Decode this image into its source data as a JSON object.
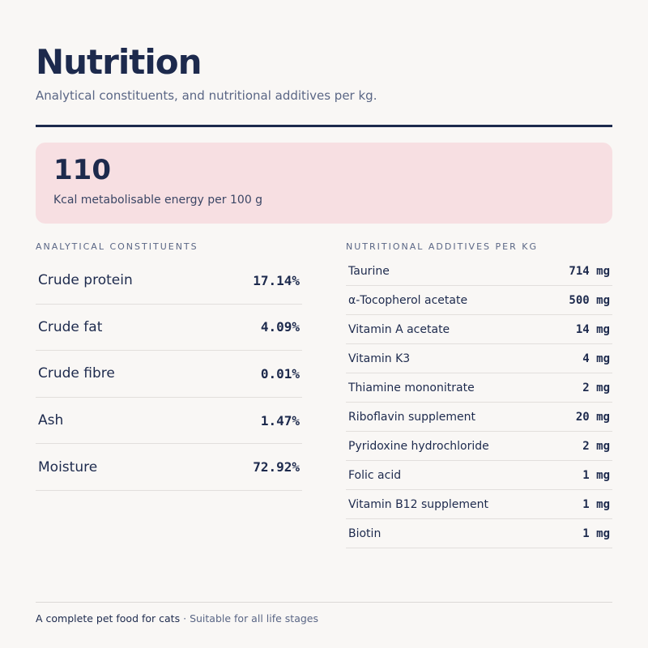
{
  "header": {
    "title": "Nutrition",
    "subtitle": "Analytical constituents, and nutritional additives per kg."
  },
  "energy": {
    "value": "110",
    "label": "Kcal metabolisable energy per 100 g"
  },
  "analytical": {
    "heading": "ANALYTICAL CONSTITUENTS",
    "rows": [
      [
        "Crude protein",
        "17.14%"
      ],
      [
        "Crude fat",
        "4.09%"
      ],
      [
        "Crude fibre",
        "0.01%"
      ],
      [
        "Ash",
        "1.47%"
      ],
      [
        "Moisture",
        "72.92%"
      ]
    ]
  },
  "additives": {
    "heading": "NUTRITIONAL ADDITIVES PER KG",
    "rows": [
      [
        "Taurine",
        "714 mg"
      ],
      [
        "α-Tocopherol acetate",
        "500 mg"
      ],
      [
        "Vitamin A acetate",
        "14 mg"
      ],
      [
        "Vitamin K3",
        "4 mg"
      ],
      [
        "Thiamine mononitrate",
        "2 mg"
      ],
      [
        "Riboflavin supplement",
        "20 mg"
      ],
      [
        "Pyridoxine hydrochloride",
        "2 mg"
      ],
      [
        "Folic acid",
        "1 mg"
      ],
      [
        "Vitamin B12 supplement",
        "1 mg"
      ],
      [
        "Biotin",
        "1 mg"
      ]
    ]
  },
  "footer": {
    "primary": "A complete pet food for cats",
    "separator": "·",
    "secondary": "Suitable for all life stages"
  }
}
